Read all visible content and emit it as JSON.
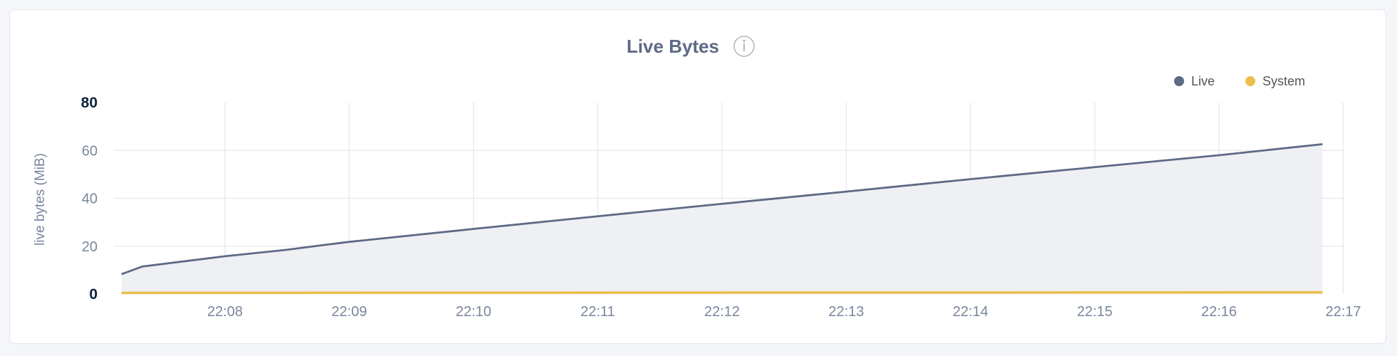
{
  "chart_data": {
    "type": "area",
    "title": "Live Bytes",
    "title_icon": "info-icon",
    "ylabel": "live bytes (MiB)",
    "xlabel": "",
    "ylim": [
      0,
      80
    ],
    "yticks": [
      "0",
      "20",
      "40",
      "60",
      "80"
    ],
    "xlim": [
      "22:07:10",
      "22:17:00"
    ],
    "xticks": [
      "22:08",
      "22:09",
      "22:10",
      "22:11",
      "22:12",
      "22:13",
      "22:14",
      "22:15",
      "22:16",
      "22:17"
    ],
    "grid": true,
    "legend_position": "top-right",
    "series": [
      {
        "name": "Live",
        "color": "#5e6a85",
        "fill": "#eef0f4",
        "x": [
          "22:07:10",
          "22:07:20",
          "22:08:00",
          "22:08:30",
          "22:08:45",
          "22:09:00",
          "22:10:00",
          "22:11:00",
          "22:12:00",
          "22:13:00",
          "22:14:00",
          "22:15:00",
          "22:16:00",
          "22:16:50"
        ],
        "values": [
          8.3,
          11.5,
          15.8,
          18.5,
          20.2,
          21.8,
          27.2,
          32.5,
          37.7,
          42.8,
          48.0,
          53.0,
          58.0,
          62.6
        ]
      },
      {
        "name": "System",
        "color": "#ebbf4c",
        "x": [
          "22:07:10",
          "22:16:50"
        ],
        "values": [
          0.5,
          0.7
        ]
      }
    ]
  }
}
